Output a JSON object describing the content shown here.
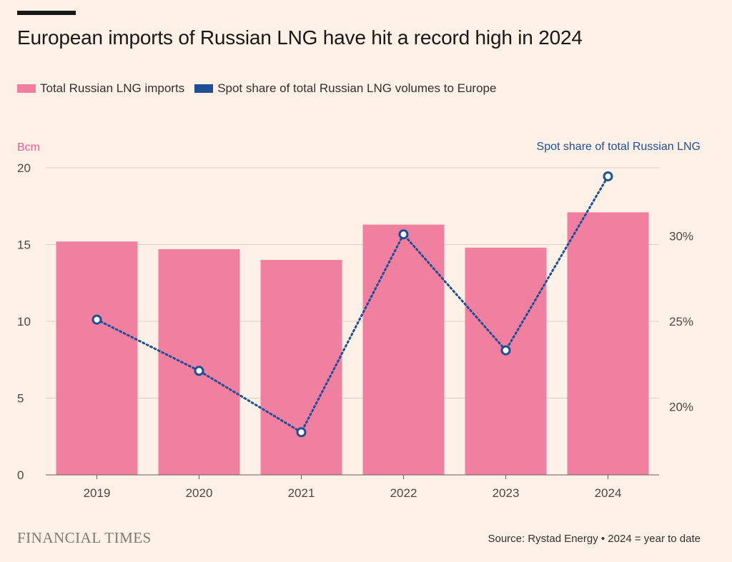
{
  "colors": {
    "background": "#fdf0e6",
    "bar": "#f07fa0",
    "line": "#1e4f96",
    "grid": "#d9cec5",
    "axis_left_title": "#e6608f",
    "axis_right_title": "#1e4f96"
  },
  "header": {
    "title": "European imports of Russian LNG have hit a record high in 2024"
  },
  "legend": {
    "items": [
      {
        "label": "Total Russian LNG imports",
        "color": "#f07fa0"
      },
      {
        "label": "Spot share of total Russian LNG volumes to Europe",
        "color": "#1e4f96"
      }
    ]
  },
  "footer": {
    "brand": "FINANCIAL TIMES",
    "source": "Source: Rystad Energy • 2024 = year to date"
  },
  "chart_data": {
    "type": "bar",
    "title": "European imports of Russian LNG have hit a record high in 2024",
    "categories": [
      "2019",
      "2020",
      "2021",
      "2022",
      "2023",
      "2024"
    ],
    "series": [
      {
        "name": "Total Russian LNG imports",
        "type": "bar",
        "axis": "left",
        "values": [
          15.2,
          14.7,
          14.0,
          16.3,
          14.8,
          17.1
        ]
      },
      {
        "name": "Spot share of total Russian LNG volumes to Europe",
        "type": "line",
        "style": "dotted",
        "axis": "right",
        "values": [
          25.1,
          22.1,
          18.5,
          30.1,
          23.3,
          33.5
        ]
      }
    ],
    "ylabel_left": "Bcm",
    "ylabel_right": "Spot share of total Russian LNG",
    "ylim_left": [
      0,
      20
    ],
    "yticks_left": [
      "0",
      "5",
      "10",
      "15",
      "20"
    ],
    "ylim_right": [
      16,
      34
    ],
    "yticks_right": [
      {
        "value": 20,
        "label": "20%"
      },
      {
        "value": 25,
        "label": "25%"
      },
      {
        "value": 30,
        "label": "30%"
      }
    ],
    "grid": true,
    "legend_position": "top-left"
  }
}
